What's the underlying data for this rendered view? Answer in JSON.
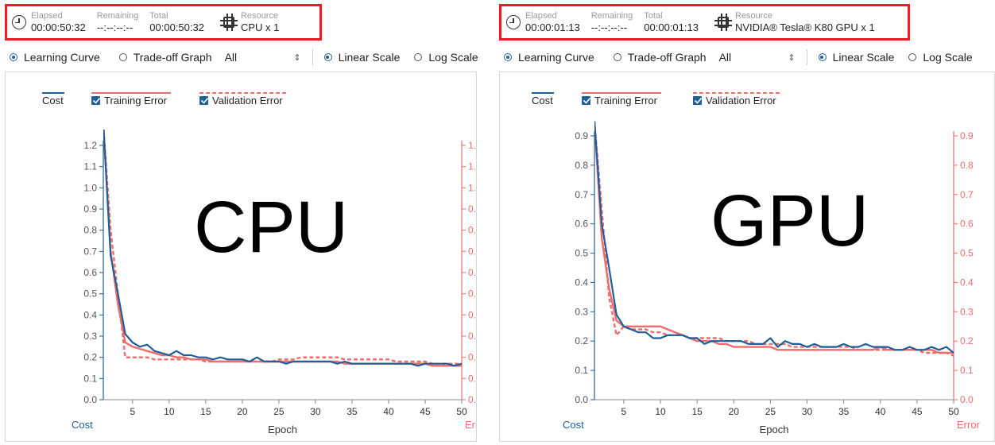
{
  "panels": [
    {
      "info": {
        "elapsed_label": "Elapsed",
        "elapsed": "00:00:50:32",
        "remaining_label": "Remaining",
        "remaining": "--:--:--:--",
        "total_label": "Total",
        "total": "00:00:50:32",
        "resource_label": "Resource",
        "resource": "CPU x 1"
      },
      "toolbar": {
        "learning_curve": "Learning Curve",
        "tradeoff": "Trade-off Graph",
        "select_value": "All",
        "linear": "Linear Scale",
        "log": "Log Scale"
      },
      "legend": {
        "cost": "Cost",
        "training": "Training Error",
        "validation": "Validation Error"
      },
      "overlay_text": "CPU"
    },
    {
      "info": {
        "elapsed_label": "Elapsed",
        "elapsed": "00:00:01:13",
        "remaining_label": "Remaining",
        "remaining": "--:--:--:--",
        "total_label": "Total",
        "total": "00:00:01:13",
        "resource_label": "Resource",
        "resource": "NVIDIA® Tesla® K80 GPU x 1"
      },
      "toolbar": {
        "learning_curve": "Learning Curve",
        "tradeoff": "Trade-off Graph",
        "select_value": "All",
        "linear": "Linear Scale",
        "log": "Log Scale"
      },
      "legend": {
        "cost": "Cost",
        "training": "Training Error",
        "validation": "Validation Error"
      },
      "overlay_text": "GPU"
    }
  ],
  "colors": {
    "cost": "#1f5f99",
    "error": "#f06c6c",
    "highlight": "#ee1c24"
  },
  "chart_data": [
    {
      "type": "line",
      "xlabel": "Epoch",
      "ylabel_left": "Cost",
      "ylabel_right": "Error",
      "xlim": [
        1,
        50
      ],
      "ylim": [
        0,
        1.2
      ],
      "xticks": [
        5,
        10,
        15,
        20,
        25,
        30,
        35,
        40,
        45,
        50
      ],
      "yticks": [
        0.0,
        0.1,
        0.2,
        0.3,
        0.4,
        0.5,
        0.6,
        0.7,
        0.8,
        0.9,
        1.0,
        1.1,
        1.2
      ],
      "grid": false,
      "series": [
        {
          "name": "Cost",
          "axis": "left",
          "style": "solid",
          "x": [
            1,
            2,
            3,
            4,
            5,
            6,
            7,
            8,
            9,
            10,
            11,
            12,
            13,
            14,
            15,
            16,
            17,
            18,
            19,
            20,
            21,
            22,
            23,
            24,
            25,
            26,
            27,
            28,
            29,
            30,
            31,
            32,
            33,
            34,
            35,
            36,
            37,
            38,
            39,
            40,
            41,
            42,
            43,
            44,
            45,
            46,
            47,
            48,
            49,
            50
          ],
          "values": [
            1.3,
            0.68,
            0.5,
            0.31,
            0.27,
            0.25,
            0.26,
            0.23,
            0.22,
            0.21,
            0.23,
            0.21,
            0.21,
            0.2,
            0.2,
            0.19,
            0.2,
            0.19,
            0.19,
            0.19,
            0.18,
            0.2,
            0.18,
            0.18,
            0.18,
            0.17,
            0.18,
            0.18,
            0.18,
            0.18,
            0.18,
            0.18,
            0.17,
            0.18,
            0.17,
            0.17,
            0.17,
            0.17,
            0.17,
            0.17,
            0.17,
            0.17,
            0.17,
            0.16,
            0.17,
            0.17,
            0.17,
            0.17,
            0.16,
            0.17
          ]
        },
        {
          "name": "Training Error",
          "axis": "right",
          "style": "solid",
          "x": [
            1,
            2,
            3,
            4,
            5,
            6,
            7,
            8,
            9,
            10,
            11,
            12,
            13,
            14,
            15,
            16,
            17,
            18,
            19,
            20,
            21,
            22,
            23,
            24,
            25,
            26,
            27,
            28,
            29,
            30,
            31,
            32,
            33,
            34,
            35,
            36,
            37,
            38,
            39,
            40,
            41,
            42,
            43,
            44,
            45,
            46,
            47,
            48,
            49,
            50
          ],
          "values": [
            1.3,
            0.7,
            0.45,
            0.27,
            0.25,
            0.24,
            0.23,
            0.22,
            0.21,
            0.21,
            0.2,
            0.2,
            0.19,
            0.19,
            0.19,
            0.18,
            0.18,
            0.18,
            0.18,
            0.18,
            0.18,
            0.18,
            0.18,
            0.18,
            0.18,
            0.18,
            0.18,
            0.18,
            0.18,
            0.18,
            0.18,
            0.18,
            0.18,
            0.17,
            0.17,
            0.17,
            0.17,
            0.17,
            0.17,
            0.17,
            0.17,
            0.17,
            0.17,
            0.17,
            0.17,
            0.16,
            0.16,
            0.16,
            0.16,
            0.16
          ]
        },
        {
          "name": "Validation Error",
          "axis": "right",
          "style": "dashed",
          "x": [
            1,
            2,
            3,
            4,
            5,
            6,
            7,
            8,
            9,
            10,
            11,
            12,
            13,
            14,
            15,
            16,
            17,
            18,
            19,
            20,
            21,
            22,
            23,
            24,
            25,
            26,
            27,
            28,
            29,
            30,
            31,
            32,
            33,
            34,
            35,
            36,
            37,
            38,
            39,
            40,
            41,
            42,
            43,
            44,
            45,
            46,
            47,
            48,
            49,
            50
          ],
          "values": [
            1.3,
            0.8,
            0.5,
            0.2,
            0.2,
            0.2,
            0.2,
            0.19,
            0.19,
            0.19,
            0.19,
            0.19,
            0.19,
            0.19,
            0.18,
            0.18,
            0.18,
            0.18,
            0.18,
            0.18,
            0.18,
            0.18,
            0.18,
            0.18,
            0.19,
            0.19,
            0.19,
            0.2,
            0.2,
            0.2,
            0.2,
            0.2,
            0.2,
            0.19,
            0.19,
            0.19,
            0.19,
            0.19,
            0.19,
            0.19,
            0.18,
            0.18,
            0.18,
            0.18,
            0.18,
            0.17,
            0.17,
            0.17,
            0.17,
            0.17
          ]
        }
      ]
    },
    {
      "type": "line",
      "xlabel": "Epoch",
      "ylabel_left": "Cost",
      "ylabel_right": "Error",
      "xlim": [
        1,
        50
      ],
      "ylim": [
        0,
        0.9
      ],
      "xticks": [
        5,
        10,
        15,
        20,
        25,
        30,
        35,
        40,
        45,
        50
      ],
      "yticks": [
        0.0,
        0.1,
        0.2,
        0.3,
        0.4,
        0.5,
        0.6,
        0.7,
        0.8,
        0.9
      ],
      "grid": false,
      "series": [
        {
          "name": "Cost",
          "axis": "left",
          "style": "solid",
          "x": [
            1,
            2,
            3,
            4,
            5,
            6,
            7,
            8,
            9,
            10,
            11,
            12,
            13,
            14,
            15,
            16,
            17,
            18,
            19,
            20,
            21,
            22,
            23,
            24,
            25,
            26,
            27,
            28,
            29,
            30,
            31,
            32,
            33,
            34,
            35,
            36,
            37,
            38,
            39,
            40,
            41,
            42,
            43,
            44,
            45,
            46,
            47,
            48,
            49,
            50
          ],
          "values": [
            0.95,
            0.6,
            0.45,
            0.29,
            0.25,
            0.24,
            0.23,
            0.23,
            0.21,
            0.21,
            0.22,
            0.22,
            0.22,
            0.21,
            0.21,
            0.19,
            0.2,
            0.2,
            0.2,
            0.2,
            0.2,
            0.19,
            0.19,
            0.19,
            0.21,
            0.18,
            0.2,
            0.19,
            0.19,
            0.18,
            0.19,
            0.18,
            0.18,
            0.18,
            0.19,
            0.18,
            0.18,
            0.19,
            0.18,
            0.18,
            0.18,
            0.17,
            0.17,
            0.18,
            0.17,
            0.17,
            0.18,
            0.17,
            0.18,
            0.16
          ]
        },
        {
          "name": "Training Error",
          "axis": "right",
          "style": "solid",
          "x": [
            1,
            2,
            3,
            4,
            5,
            6,
            7,
            8,
            9,
            10,
            11,
            12,
            13,
            14,
            15,
            16,
            17,
            18,
            19,
            20,
            21,
            22,
            23,
            24,
            25,
            26,
            27,
            28,
            29,
            30,
            31,
            32,
            33,
            34,
            35,
            36,
            37,
            38,
            39,
            40,
            41,
            42,
            43,
            44,
            45,
            46,
            47,
            48,
            49,
            50
          ],
          "values": [
            0.95,
            0.55,
            0.38,
            0.27,
            0.25,
            0.25,
            0.25,
            0.25,
            0.25,
            0.25,
            0.24,
            0.23,
            0.22,
            0.21,
            0.2,
            0.2,
            0.2,
            0.19,
            0.19,
            0.18,
            0.18,
            0.18,
            0.18,
            0.18,
            0.18,
            0.17,
            0.17,
            0.17,
            0.17,
            0.17,
            0.17,
            0.17,
            0.17,
            0.17,
            0.17,
            0.17,
            0.17,
            0.17,
            0.17,
            0.18,
            0.17,
            0.17,
            0.17,
            0.17,
            0.17,
            0.17,
            0.17,
            0.16,
            0.16,
            0.16
          ]
        },
        {
          "name": "Validation Error",
          "axis": "right",
          "style": "dashed",
          "x": [
            1,
            2,
            3,
            4,
            5,
            6,
            7,
            8,
            9,
            10,
            11,
            12,
            13,
            14,
            15,
            16,
            17,
            18,
            19,
            20,
            21,
            22,
            23,
            24,
            25,
            26,
            27,
            28,
            29,
            30,
            31,
            32,
            33,
            34,
            35,
            36,
            37,
            38,
            39,
            40,
            41,
            42,
            43,
            44,
            45,
            46,
            47,
            48,
            49,
            50
          ],
          "values": [
            0.95,
            0.65,
            0.35,
            0.22,
            0.25,
            0.24,
            0.24,
            0.24,
            0.23,
            0.23,
            0.22,
            0.22,
            0.22,
            0.21,
            0.21,
            0.21,
            0.21,
            0.21,
            0.2,
            0.2,
            0.2,
            0.2,
            0.19,
            0.19,
            0.19,
            0.19,
            0.19,
            0.18,
            0.18,
            0.18,
            0.18,
            0.18,
            0.18,
            0.18,
            0.18,
            0.18,
            0.17,
            0.17,
            0.17,
            0.17,
            0.17,
            0.17,
            0.17,
            0.17,
            0.17,
            0.16,
            0.16,
            0.16,
            0.16,
            0.15
          ]
        }
      ]
    }
  ]
}
